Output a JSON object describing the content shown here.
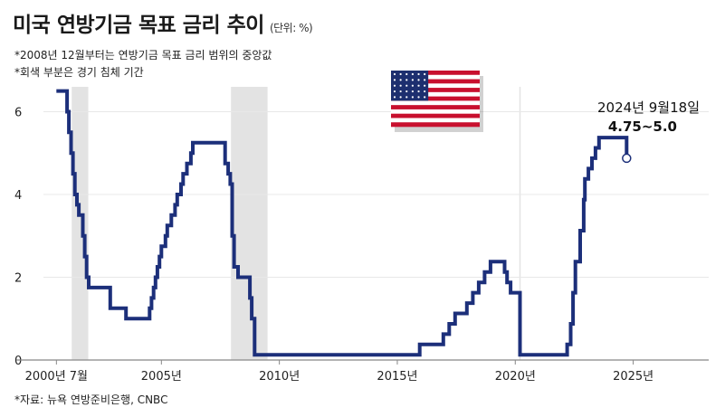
{
  "chart_data": {
    "type": "line",
    "title": "미국 연방기금 목표 금리 추이",
    "unit": "(단위: %)",
    "notes": [
      "*2008년 12월부터는 연방기금 목표 금리 범위의 중앙값",
      "*회색 부분은 경기 침체 기간"
    ],
    "source": "*자료: 뉴욕 연방준비은행, CNBC",
    "xlim": [
      2000.0,
      2028.2
    ],
    "ylim": [
      0,
      6.6
    ],
    "yticks": [
      "0",
      "2",
      "4",
      "6"
    ],
    "xticks": [
      {
        "value": 2000.55,
        "label": "2000년 7월"
      },
      {
        "value": 2005,
        "label": "2005년"
      },
      {
        "value": 2010,
        "label": "2010년"
      },
      {
        "value": 2015,
        "label": "2015년"
      },
      {
        "value": 2020,
        "label": "2020년"
      },
      {
        "value": 2025,
        "label": "2025년"
      }
    ],
    "recessions": [
      [
        2001.2,
        2001.9
      ],
      [
        2007.95,
        2009.5
      ]
    ],
    "guide_lines": [
      2020.2
    ],
    "annotation": {
      "date": "2024년 9월18일",
      "value_label": "4.75~5.0",
      "x": 2024.72,
      "y": 4.875
    },
    "series": [
      {
        "x": [
          2000.55,
          2001.0,
          2001.08,
          2001.17,
          2001.25,
          2001.33,
          2001.42,
          2001.5,
          2001.67,
          2001.75,
          2001.83,
          2001.92,
          2002.83,
          2003.5,
          2004.5,
          2004.58,
          2004.67,
          2004.75,
          2004.83,
          2004.92,
          2005.0,
          2005.17,
          2005.25,
          2005.42,
          2005.58,
          2005.67,
          2005.83,
          2005.92,
          2006.08,
          2006.25,
          2006.33,
          2006.5,
          2007.7,
          2007.83,
          2007.92,
          2008.0,
          2008.08,
          2008.25,
          2008.33,
          2008.75,
          2008.83,
          2008.95,
          2015.95,
          2016.95,
          2017.2,
          2017.45,
          2017.95,
          2018.2,
          2018.45,
          2018.7,
          2018.95,
          2019.55,
          2019.65,
          2019.8,
          2020.2,
          2022.2,
          2022.35,
          2022.45,
          2022.55,
          2022.75,
          2022.9,
          2022.95,
          2023.1,
          2023.25,
          2023.4,
          2023.55,
          2024.72
        ],
        "y": [
          6.5,
          6.0,
          5.5,
          5.0,
          4.5,
          4.0,
          3.75,
          3.5,
          3.0,
          2.5,
          2.0,
          1.75,
          1.25,
          1.0,
          1.25,
          1.5,
          1.75,
          2.0,
          2.25,
          2.5,
          2.75,
          3.0,
          3.25,
          3.5,
          3.75,
          4.0,
          4.25,
          4.5,
          4.75,
          5.0,
          5.25,
          5.25,
          4.75,
          4.5,
          4.25,
          3.0,
          2.25,
          2.0,
          2.0,
          1.5,
          1.0,
          0.125,
          0.375,
          0.625,
          0.875,
          1.125,
          1.375,
          1.625,
          1.875,
          2.125,
          2.375,
          2.125,
          1.875,
          1.625,
          0.125,
          0.375,
          0.875,
          1.625,
          2.375,
          3.125,
          3.875,
          4.375,
          4.625,
          4.875,
          5.125,
          5.375,
          4.875
        ]
      }
    ],
    "colors": {
      "line": "#1c2f7a",
      "recession": "#e3e3e3",
      "axis": "#888888",
      "grid": "#e8e8e8"
    }
  },
  "flag": {
    "icon": "us-flag-icon"
  }
}
